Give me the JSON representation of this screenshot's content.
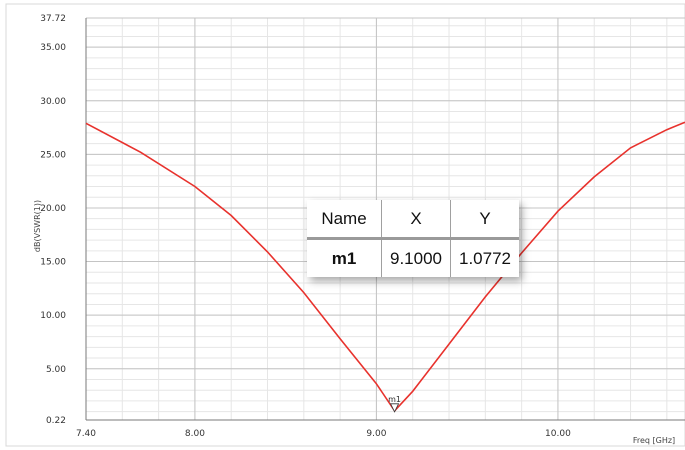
{
  "chart_data": {
    "type": "line",
    "xlabel": "Freq [GHz]",
    "ylabel": "dB(VSWR(1))",
    "xlim": [
      7.4,
      10.7
    ],
    "ylim": [
      0.22,
      37.72
    ],
    "x_ticks": [
      "7.40",
      "8.00",
      "9.00",
      "10.00"
    ],
    "y_ticks": [
      "0.22",
      "5.00",
      "10.00",
      "15.00",
      "20.00",
      "25.00",
      "30.00",
      "35.00",
      "37.72"
    ],
    "grid": true,
    "color": "#e8322d",
    "series": [
      {
        "x": [
          7.4,
          7.7,
          8.0,
          8.2,
          8.4,
          8.6,
          8.8,
          9.0,
          9.1,
          9.2,
          9.4,
          9.6,
          9.8,
          10.0,
          10.2,
          10.4,
          10.6,
          10.7
        ],
        "values": [
          27.9,
          25.2,
          22.0,
          19.3,
          15.9,
          12.1,
          7.8,
          3.6,
          1.08,
          2.9,
          7.3,
          11.7,
          15.8,
          19.7,
          22.9,
          25.6,
          27.3,
          28.0
        ]
      }
    ],
    "marker": {
      "label": "m1",
      "x": 9.1,
      "y": 1.0772,
      "table": {
        "headers": [
          "Name",
          "X",
          "Y"
        ],
        "row": [
          "m1",
          "9.1000",
          "1.0772"
        ]
      }
    }
  }
}
